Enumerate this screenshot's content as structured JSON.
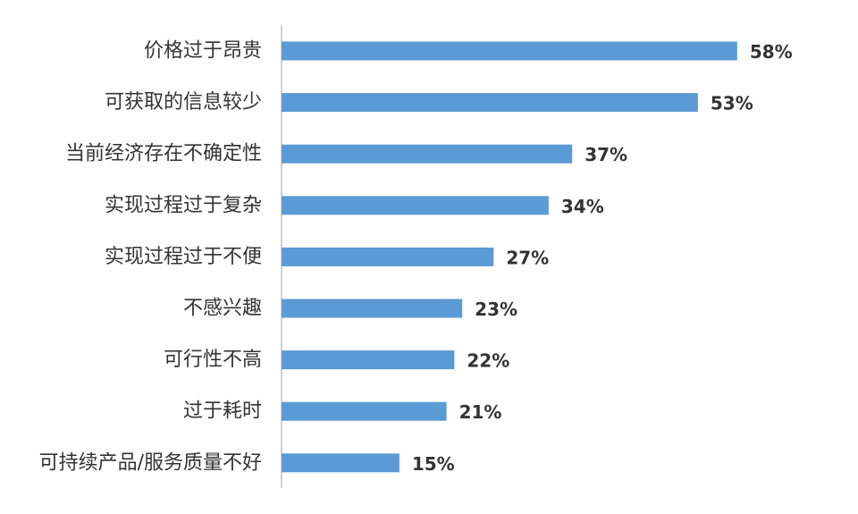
{
  "chart_data": {
    "type": "bar",
    "orientation": "horizontal",
    "categories": [
      "价格过于昂贵",
      "可获取的信息较少",
      "当前经济存在不确定性",
      "实现过程过于复杂",
      "实现过程过于不便",
      "不感兴趣",
      "可行性不高",
      "过于耗时",
      "可持续产品/服务质量不好"
    ],
    "values": [
      58,
      53,
      37,
      34,
      27,
      23,
      22,
      21,
      15
    ],
    "value_labels": [
      "58%",
      "53%",
      "37%",
      "34%",
      "27%",
      "23%",
      "22%",
      "21%",
      "15%"
    ],
    "unit": "%",
    "bar_color": "#5b9bd5",
    "axis_color": "#bfbfbf",
    "text_color": "#333333",
    "grid": false,
    "legend": "none",
    "xlim": [
      0,
      60
    ]
  }
}
